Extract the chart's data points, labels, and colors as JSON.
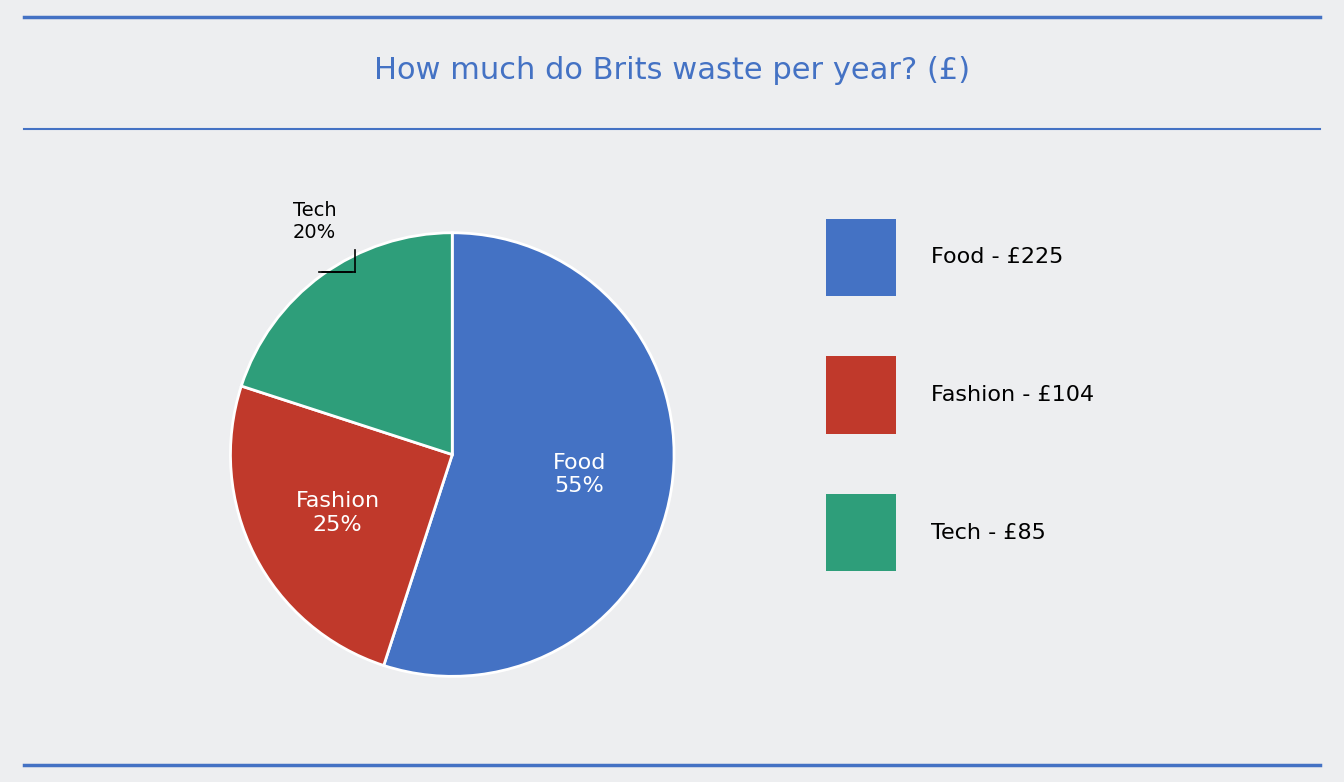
{
  "title": "How much do Brits waste per year? (£)",
  "title_color": "#4472C4",
  "title_fontsize": 22,
  "background_color": "#EDEEF0",
  "slices": [
    55,
    25,
    20
  ],
  "labels": [
    "Food",
    "Fashion",
    "Tech"
  ],
  "colors": [
    "#4472C4",
    "#C0392B",
    "#2E9E7A"
  ],
  "legend_labels": [
    "Food - £225",
    "Fashion - £104",
    "Tech - £85"
  ],
  "legend_fontsize": 16,
  "inner_labels": [
    "Food\n55%",
    "Fashion\n25%"
  ],
  "inner_label_fontsize": 16,
  "inner_label_colors": [
    "white",
    "white"
  ],
  "annotation_label": "Tech\n20%",
  "annotation_fontsize": 14,
  "annotation_color": "black",
  "header_line_color": "#4472C4",
  "border_color": "#4472C4"
}
